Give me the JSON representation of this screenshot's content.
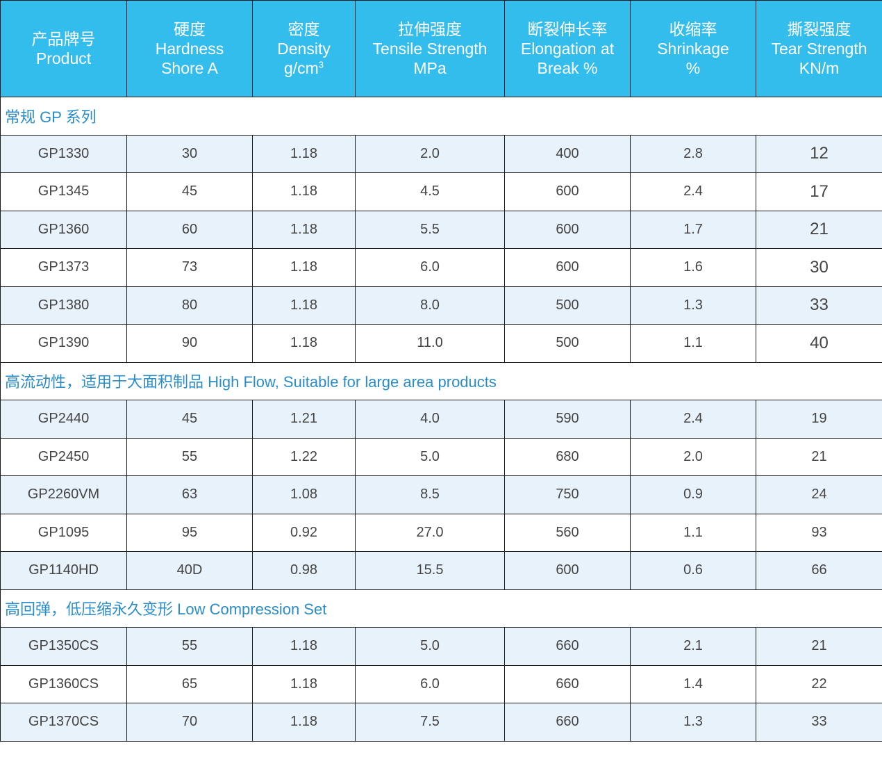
{
  "headers": [
    {
      "lines": [
        "产品牌号",
        "Product"
      ]
    },
    {
      "lines": [
        "硬度",
        "Hardness",
        "Shore A"
      ]
    },
    {
      "lines": [
        "密度",
        "Density",
        "g/cm"
      ],
      "sup": "3"
    },
    {
      "lines": [
        "拉伸强度",
        "Tensile Strength",
        "MPa"
      ]
    },
    {
      "lines": [
        "断裂伸长率",
        "Elongation at",
        "Break %"
      ]
    },
    {
      "lines": [
        "收缩率",
        "Shrinkage",
        "%"
      ]
    },
    {
      "lines": [
        "撕裂强度",
        "Tear Strength",
        "KN/m"
      ]
    }
  ],
  "sections": [
    {
      "title": "常规 GP 系列",
      "large_last_column": true,
      "rows": [
        [
          "GP1330",
          "30",
          "1.18",
          "2.0",
          "400",
          "2.8",
          "12"
        ],
        [
          "GP1345",
          "45",
          "1.18",
          "4.5",
          "600",
          "2.4",
          "17"
        ],
        [
          "GP1360",
          "60",
          "1.18",
          "5.5",
          "600",
          "1.7",
          "21"
        ],
        [
          "GP1373",
          "73",
          "1.18",
          "6.0",
          "600",
          "1.6",
          "30"
        ],
        [
          "GP1380",
          "80",
          "1.18",
          "8.0",
          "500",
          "1.3",
          "33"
        ],
        [
          "GP1390",
          "90",
          "1.18",
          "11.0",
          "500",
          "1.1",
          "40"
        ]
      ]
    },
    {
      "title": "高流动性，适用于大面积制品 High Flow, Suitable for large area products",
      "large_last_column": false,
      "rows": [
        [
          "GP2440",
          "45",
          "1.21",
          "4.0",
          "590",
          "2.4",
          "19"
        ],
        [
          "GP2450",
          "55",
          "1.22",
          "5.0",
          "680",
          "2.0",
          "21"
        ],
        [
          "GP2260VM",
          "63",
          "1.08",
          "8.5",
          "750",
          "0.9",
          "24"
        ],
        [
          "GP1095",
          "95",
          "0.92",
          "27.0",
          "560",
          "1.1",
          "93"
        ],
        [
          "GP1140HD",
          "40D",
          "0.98",
          "15.5",
          "600",
          "0.6",
          "66"
        ]
      ]
    },
    {
      "title": "高回弹，低压缩永久变形 Low Compression Set",
      "large_last_column": false,
      "rows": [
        [
          "GP1350CS",
          "55",
          "1.18",
          "5.0",
          "660",
          "2.1",
          "21"
        ],
        [
          "GP1360CS",
          "65",
          "1.18",
          "6.0",
          "660",
          "1.4",
          "22"
        ],
        [
          "GP1370CS",
          "70",
          "1.18",
          "7.5",
          "660",
          "1.3",
          "33"
        ]
      ]
    }
  ],
  "colors": {
    "header_bg": "#33bdec",
    "header_text": "#ffffff",
    "section_text": "#2a8dc8",
    "row_alt_bg": "#e7f2fa",
    "row_bg": "#ffffff",
    "cell_text": "#444444",
    "border": "#1a1a1a"
  }
}
